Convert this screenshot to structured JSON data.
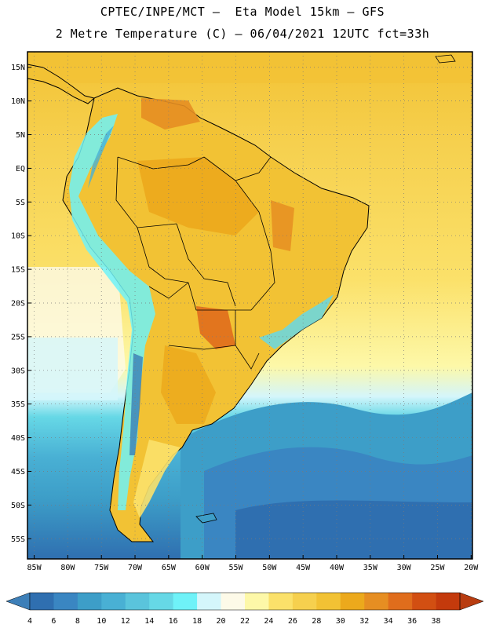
{
  "header": {
    "line1": "CPTEC/INPE/MCT –  Eta Model 15km – GFS",
    "line2": "2 Metre Temperature (C) – 06/04/2021 12UTC fct=33h"
  },
  "map": {
    "lat_labels": [
      "15N",
      "10N",
      "5N",
      "EQ",
      "5S",
      "10S",
      "15S",
      "20S",
      "25S",
      "30S",
      "35S",
      "40S",
      "45S",
      "50S",
      "55S"
    ],
    "lon_labels": [
      "85W",
      "80W",
      "75W",
      "70W",
      "65W",
      "60W",
      "55W",
      "50W",
      "45W",
      "40W",
      "35W",
      "30W",
      "25W",
      "20W"
    ],
    "lat_values": [
      15,
      10,
      5,
      0,
      -5,
      -10,
      -15,
      -20,
      -25,
      -30,
      -35,
      -40,
      -45,
      -50,
      -55
    ],
    "lon_values": [
      -85,
      -80,
      -75,
      -70,
      -65,
      -60,
      -55,
      -50,
      -45,
      -40,
      -35,
      -30,
      -25,
      -20
    ]
  },
  "colorbar": {
    "labels": [
      "4",
      "6",
      "8",
      "10",
      "12",
      "14",
      "16",
      "18",
      "20",
      "22",
      "24",
      "26",
      "28",
      "30",
      "32",
      "34",
      "36",
      "38"
    ],
    "colors": [
      "#2f6fb0",
      "#3a86c2",
      "#3d9ec8",
      "#49b0d4",
      "#5ac4dc",
      "#66d8e6",
      "#6ff2f8",
      "#d4f6fb",
      "#fdfae8",
      "#fdf8a8",
      "#fbe16a",
      "#f6d04e",
      "#f2c234",
      "#eca91c",
      "#e68e22",
      "#e06d1c",
      "#d24f12",
      "#c43a0c"
    ],
    "left_color": "#3d7fb8",
    "right_color": "#b83c10"
  }
}
